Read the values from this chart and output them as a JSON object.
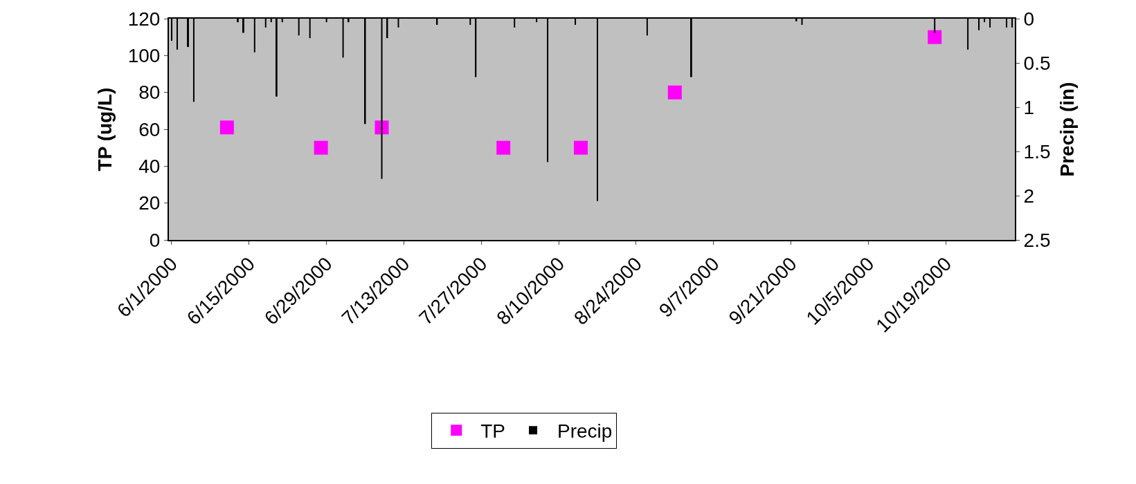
{
  "chart_data": {
    "type": "scatter",
    "xlabel": null,
    "ylabel": "TP (ug/L)",
    "y2label": "Precip (in)",
    "xlim": [
      "2000-05-31T12:00",
      "2000-10-31T12:00"
    ],
    "xticks": [
      {
        "value": "2000-06-01",
        "label": "6/1/2000"
      },
      {
        "value": "2000-06-15",
        "label": "6/15/2000"
      },
      {
        "value": "2000-06-29",
        "label": "6/29/2000"
      },
      {
        "value": "2000-07-13",
        "label": "7/13/2000"
      },
      {
        "value": "2000-07-27",
        "label": "7/27/2000"
      },
      {
        "value": "2000-08-10",
        "label": "8/10/2000"
      },
      {
        "value": "2000-08-24",
        "label": "8/24/2000"
      },
      {
        "value": "2000-09-07",
        "label": "9/7/2000"
      },
      {
        "value": "2000-09-21",
        "label": "9/21/2000"
      },
      {
        "value": "2000-10-05",
        "label": "10/5/2000"
      },
      {
        "value": "2000-10-19",
        "label": "10/19/2000"
      }
    ],
    "ylim": [
      0,
      120
    ],
    "yticks": [
      0,
      20,
      40,
      60,
      80,
      100,
      120
    ],
    "y2lim": [
      2.5,
      0
    ],
    "y2ticks": [
      0,
      0.5,
      1,
      1.5,
      2,
      2.5
    ],
    "grid": false,
    "legend": "bottom",
    "marker": "square",
    "series": [
      {
        "name": "TP",
        "color": "#ff00ff",
        "x": [
          "2000-06-11",
          "2000-06-28",
          "2000-07-09",
          "2000-07-31",
          "2000-08-14",
          "2000-08-31",
          "2000-10-17"
        ],
        "values": [
          61,
          50,
          61,
          50,
          50,
          80,
          110
        ]
      },
      {
        "name": "Precip",
        "type": "bar",
        "axis": "y2",
        "color": "#000000",
        "x": [
          "2000-06-01",
          "2000-06-02",
          "2000-06-04",
          "2000-06-05",
          "2000-06-13",
          "2000-06-14",
          "2000-06-16",
          "2000-06-18",
          "2000-06-19",
          "2000-06-20",
          "2000-06-21",
          "2000-06-24",
          "2000-06-26",
          "2000-06-29",
          "2000-07-02",
          "2000-07-03",
          "2000-07-06",
          "2000-07-09",
          "2000-07-10",
          "2000-07-12",
          "2000-07-19",
          "2000-07-25",
          "2000-07-26",
          "2000-08-02",
          "2000-08-06",
          "2000-08-08",
          "2000-08-13",
          "2000-08-17",
          "2000-08-26",
          "2000-09-03",
          "2000-09-22",
          "2000-09-23",
          "2000-10-17",
          "2000-10-23",
          "2000-10-25",
          "2000-10-26",
          "2000-10-27",
          "2000-10-30",
          "2000-10-31"
        ],
        "values": [
          0.25,
          0.35,
          0.32,
          0.94,
          0.04,
          0.16,
          0.38,
          0.1,
          0.04,
          0.88,
          0.04,
          0.19,
          0.22,
          0.04,
          0.44,
          0.04,
          1.19,
          1.81,
          0.22,
          0.1,
          0.07,
          0.07,
          0.66,
          0.1,
          0.04,
          1.62,
          0.07,
          2.06,
          0.19,
          0.66,
          0.03,
          0.07,
          0.16,
          0.35,
          0.13,
          0.04,
          0.1,
          0.1,
          0.1
        ]
      }
    ]
  }
}
